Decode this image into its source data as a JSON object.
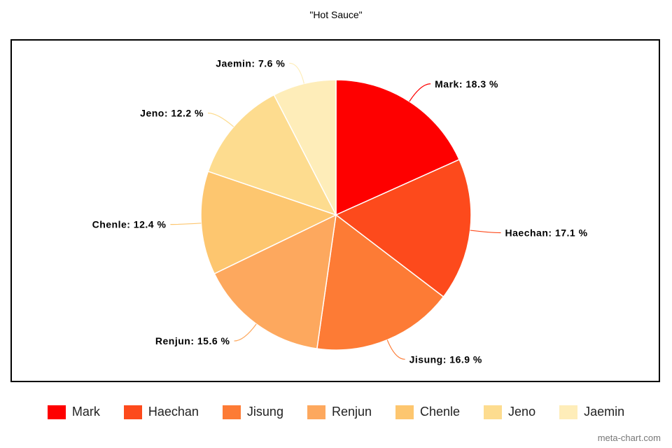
{
  "chart_data": {
    "type": "pie",
    "title": "\"Hot Sauce\"",
    "categories": [
      "Mark",
      "Haechan",
      "Jisung",
      "Renjun",
      "Chenle",
      "Jeno",
      "Jaemin"
    ],
    "values": [
      18.3,
      17.1,
      16.9,
      15.6,
      12.4,
      12.2,
      7.6
    ],
    "data_labels": [
      "Mark: 18.3 %",
      "Haechan: 17.1 %",
      "Jisung: 16.9 %",
      "Renjun: 15.6 %",
      "Chenle: 12.4 %",
      "Jeno: 12.2 %",
      "Jaemin: 7.6 %"
    ],
    "colors": [
      "#fe0000",
      "#fd4a1c",
      "#fd7b35",
      "#fda85e",
      "#fdc66f",
      "#fddc8f",
      "#feedb9"
    ],
    "legend_position": "bottom"
  },
  "credit": "meta-chart.com"
}
